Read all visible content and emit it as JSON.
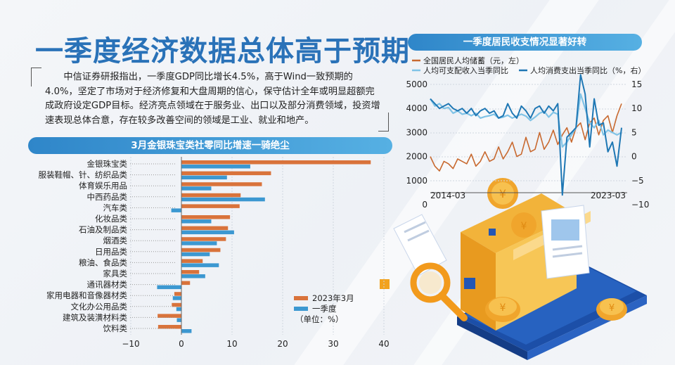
{
  "headline": "一季度经济数据总体高于预期",
  "intro_text": "中信证券研报指出，一季度GDP同比增长4.5%，高于Wind一致预期的4.0%，坚定了市场对于经济修复和大盘周期的信心，保守估计全年或明显超额完成政府设定GDP目标。经济亮点领域在于服务业、出口以及部分消费领域，投资增速表现总体合意，存在较多改善空间的领域是工业、就业和地产。",
  "colors": {
    "accent": "#2a72b8",
    "series_2023_03": "#d9733b",
    "series_q1": "#3c98d1",
    "savings": "#c8692f",
    "income": "#80c3e6",
    "consumption": "#1e77b4"
  },
  "chart_data": [
    {
      "type": "bar",
      "orientation": "horizontal",
      "title": "3月金银珠宝类社零同比增速一骑绝尘",
      "categories": [
        "金银珠宝类",
        "服装鞋帽、针、纺织品类",
        "体育娱乐用品",
        "中西药品类",
        "汽车类",
        "化妆品类",
        "石油及制品类",
        "烟酒类",
        "日用品类",
        "粮油、食品类",
        "家具类",
        "通讯器材类",
        "家用电器和音像器材类",
        "文化办公用品类",
        "建筑及装潢材料类",
        "饮料类"
      ],
      "series": [
        {
          "name": "2023年3月",
          "values": [
            37.4,
            17.7,
            15.9,
            11.7,
            11.5,
            9.6,
            9.2,
            8.8,
            7.7,
            4.2,
            3.5,
            1.7,
            -1.4,
            -1.9,
            -4.7,
            -4.6
          ]
        },
        {
          "name": "一季度",
          "values": [
            13.6,
            9.0,
            5.9,
            16.5,
            -2.0,
            5.9,
            10.4,
            7.0,
            5.6,
            7.4,
            4.7,
            -4.8,
            -1.7,
            -1.0,
            -0.9,
            2.0
          ]
        }
      ],
      "legend_note": "（单位：%）",
      "xlim": [
        -10,
        40
      ],
      "xticks": [
        "−10",
        "0",
        "10",
        "20",
        "30",
        "40"
      ],
      "legend_position": "bottom-right"
    },
    {
      "type": "line",
      "title": "一季度居民收支情况显著好转",
      "x_start": "2014-03",
      "x_end": "2023-03",
      "x_tick_labels": [
        "2014-03",
        "2023-03"
      ],
      "y_left_ticks": [
        "5000",
        "4000",
        "3000",
        "2000",
        "1000",
        "0"
      ],
      "y_right_ticks": [
        "15",
        "10",
        "5",
        "0",
        "−5",
        "−10"
      ],
      "ylim_left": [
        0,
        5000
      ],
      "ylim_right": [
        -10,
        15
      ],
      "series": [
        {
          "name": "全国居民人均储蓄（元，左）",
          "axis": "left",
          "values": [
            2000,
            1600,
            1400,
            1800,
            1700,
            1500,
            1900,
            1800,
            1700,
            2100,
            1600,
            1800,
            2200,
            1800,
            1900,
            2400,
            1900,
            2200,
            2600,
            2000,
            2100,
            2800,
            2200,
            2300,
            3000,
            2300,
            2600,
            3100,
            2500,
            2900,
            3200,
            2600,
            3200,
            3400,
            2700,
            3400,
            3600,
            2900,
            3500,
            3700,
            3000,
            3700,
            4200
          ]
        },
        {
          "name": "人均可支配收入当季同比",
          "axis": "right",
          "values": [
            12.0,
            10.5,
            11.0,
            10.0,
            10.2,
            9.0,
            9.5,
            8.8,
            9.0,
            8.5,
            9.0,
            8.0,
            8.3,
            8.5,
            8.8,
            8.0,
            8.2,
            8.6,
            8.0,
            8.4,
            8.8,
            8.4,
            7.5,
            8.2,
            9.0,
            9.4,
            8.2,
            9.2,
            8.8,
            2.0,
            3.0,
            4.5,
            6.0,
            13.0,
            10.0,
            7.0,
            6.0,
            7.5,
            4.5,
            5.5,
            5.0,
            4.5,
            5.0
          ]
        },
        {
          "name": "人均消费支出当季同比（%，右）",
          "axis": "right",
          "values": [
            12.0,
            11.0,
            10.0,
            10.5,
            11.0,
            10.0,
            9.5,
            10.0,
            9.0,
            10.0,
            8.5,
            9.5,
            10.0,
            9.0,
            9.5,
            8.0,
            8.5,
            11.0,
            9.0,
            8.0,
            10.5,
            9.5,
            8.0,
            10.0,
            10.5,
            9.0,
            10.5,
            9.5,
            11.0,
            -8.0,
            4.0,
            5.0,
            6.0,
            17.0,
            13.0,
            2.0,
            12.0,
            6.5,
            7.0,
            1.0,
            3.0,
            -2.0,
            6.0
          ]
        }
      ]
    }
  ]
}
